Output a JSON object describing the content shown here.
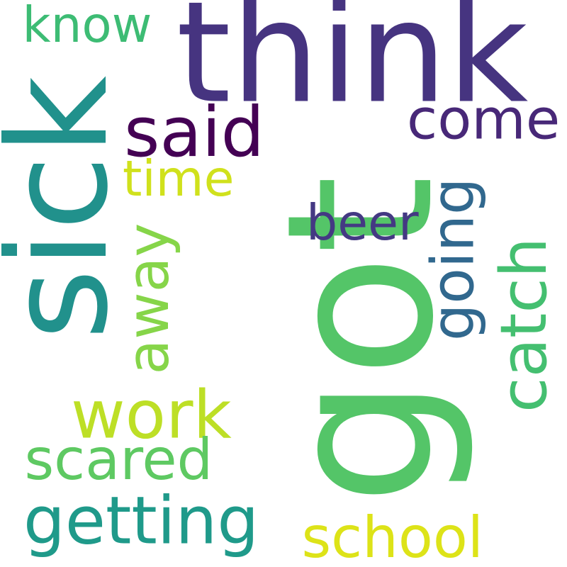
{
  "cloud": {
    "words": [
      {
        "text": "got",
        "color": "#54c568",
        "rotated": true
      },
      {
        "text": "think",
        "color": "#463480",
        "rotated": false
      },
      {
        "text": "sick",
        "color": "#21918c",
        "rotated": true
      },
      {
        "text": "know",
        "color": "#3dbc74",
        "rotated": false
      },
      {
        "text": "said",
        "color": "#440154",
        "rotated": false
      },
      {
        "text": "come",
        "color": "#482878",
        "rotated": false
      },
      {
        "text": "time",
        "color": "#d0e11c",
        "rotated": false
      },
      {
        "text": "going",
        "color": "#31688e",
        "rotated": true
      },
      {
        "text": "beer",
        "color": "#443983",
        "rotated": false
      },
      {
        "text": "away",
        "color": "#86d549",
        "rotated": true
      },
      {
        "text": "catch",
        "color": "#44bf70",
        "rotated": true
      },
      {
        "text": "work",
        "color": "#bddf26",
        "rotated": false
      },
      {
        "text": "scared",
        "color": "#5ec962",
        "rotated": false
      },
      {
        "text": "getting",
        "color": "#1f9a8a",
        "rotated": false
      },
      {
        "text": "school",
        "color": "#dde318",
        "rotated": false
      }
    ]
  }
}
